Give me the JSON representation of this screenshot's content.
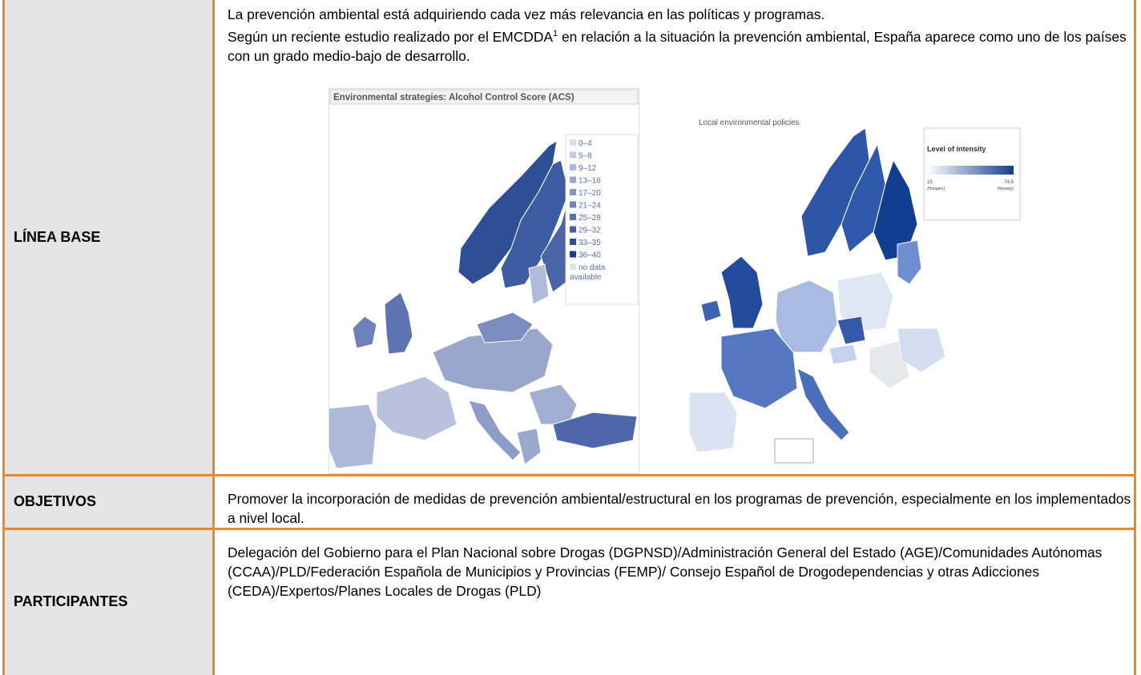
{
  "rows": [
    {
      "label": "LÍNEA BASE",
      "paragraphs": [
        "La prevención ambiental está adquiriendo cada vez más relevancia en las políticas y programas."
      ],
      "paragraph_2": {
        "before": "Según un reciente estudio realizado por el EMCDDA",
        "footnote": "1",
        "after": " en relación a la situación la prevención ambiental, España aparece como uno de los países con un grado medio-bajo de desarrollo."
      }
    },
    {
      "label": "OBJETIVOS",
      "text": "Promover la incorporación de medidas de prevención ambiental/estructural en los programas de prevención, especialmente en los implementados a nivel local."
    },
    {
      "label": "PARTICIPANTES",
      "text": "Delegación del Gobierno para el Plan Nacional sobre Drogas (DGPNSD)/Administración General del Estado (AGE)/Comunidades Autónomas (CCAA)/PLD/Federación Española de Municipios y Provincias (FEMP)/ Consejo Español de Drogodependencias y otras Adicciones (CEDA)/Expertos/Planes Locales de Drogas (PLD)"
    }
  ],
  "maps": [
    {
      "title": "Environmental strategies: Alcohol Control Score (ACS)",
      "legend": [
        "0–4",
        "5–8",
        "9–12",
        "13–16",
        "17–20",
        "21–24",
        "25–28",
        "29–32",
        "33–35",
        "36–40"
      ],
      "no_data": "no data available"
    },
    {
      "title": "Local environmental policies",
      "legend_title": "Level of intensity",
      "min": "15",
      "min_country": "(Hungary)",
      "max": "74.5",
      "max_country": "(Norway)"
    }
  ]
}
